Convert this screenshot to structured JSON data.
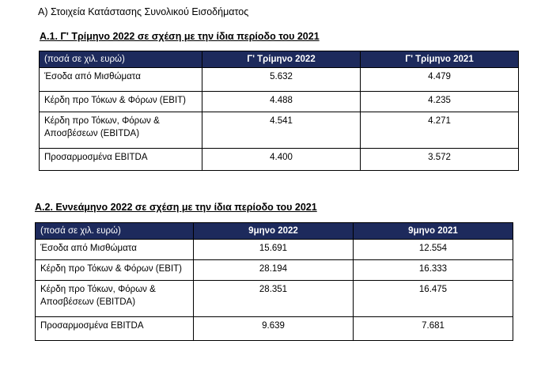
{
  "heading": "Α) Στοιχεία Κατάστασης Συνολικού Εισοδήματος",
  "section_a1": {
    "title": "Α.1. Γ' Τρίμηνο 2022 σε σχέση με την ίδια περίοδο του 2021",
    "header": [
      "(ποσά σε χιλ. ευρώ)",
      "Γ' Τρίμηνο 2022",
      "Γ' Τρίμηνο 2021"
    ],
    "rows": [
      {
        "label": "Έσοδα από Μισθώματα",
        "v1": "5.632",
        "v2": "4.479"
      },
      {
        "label": "Κέρδη προ Τόκων & Φόρων (EBIT)",
        "v1": "4.488",
        "v2": "4.235"
      },
      {
        "label_line1": "Κέρδη προ Τόκων, Φόρων &",
        "label_line2": "Αποσβέσεων (EBITDA)",
        "v1": "4.541",
        "v2": "4.271"
      },
      {
        "label": "Προσαρμοσμένα EBITDA",
        "v1": "4.400",
        "v2": "3.572"
      }
    ]
  },
  "section_a2": {
    "title": "Α.2. Εννεάμηνο 2022 σε σχέση με την ίδια περίοδο του 2021",
    "header": [
      "(ποσά σε χιλ. ευρώ)",
      "9μηνο 2022",
      "9μηνο 2021"
    ],
    "rows": [
      {
        "label": "Έσοδα από Μισθώματα",
        "v1": "15.691",
        "v2": "12.554"
      },
      {
        "label": "Κέρδη προ Τόκων & Φόρων (EBIT)",
        "v1": "28.194",
        "v2": "16.333"
      },
      {
        "label_line1": "Κέρδη προ Τόκων, Φόρων &",
        "label_line2": "Αποσβέσεων (EBITDA)",
        "v1": "28.351",
        "v2": "16.475"
      },
      {
        "label": "Προσαρμοσμένα EBITDA",
        "v1": "9.639",
        "v2": "7.681"
      }
    ]
  }
}
